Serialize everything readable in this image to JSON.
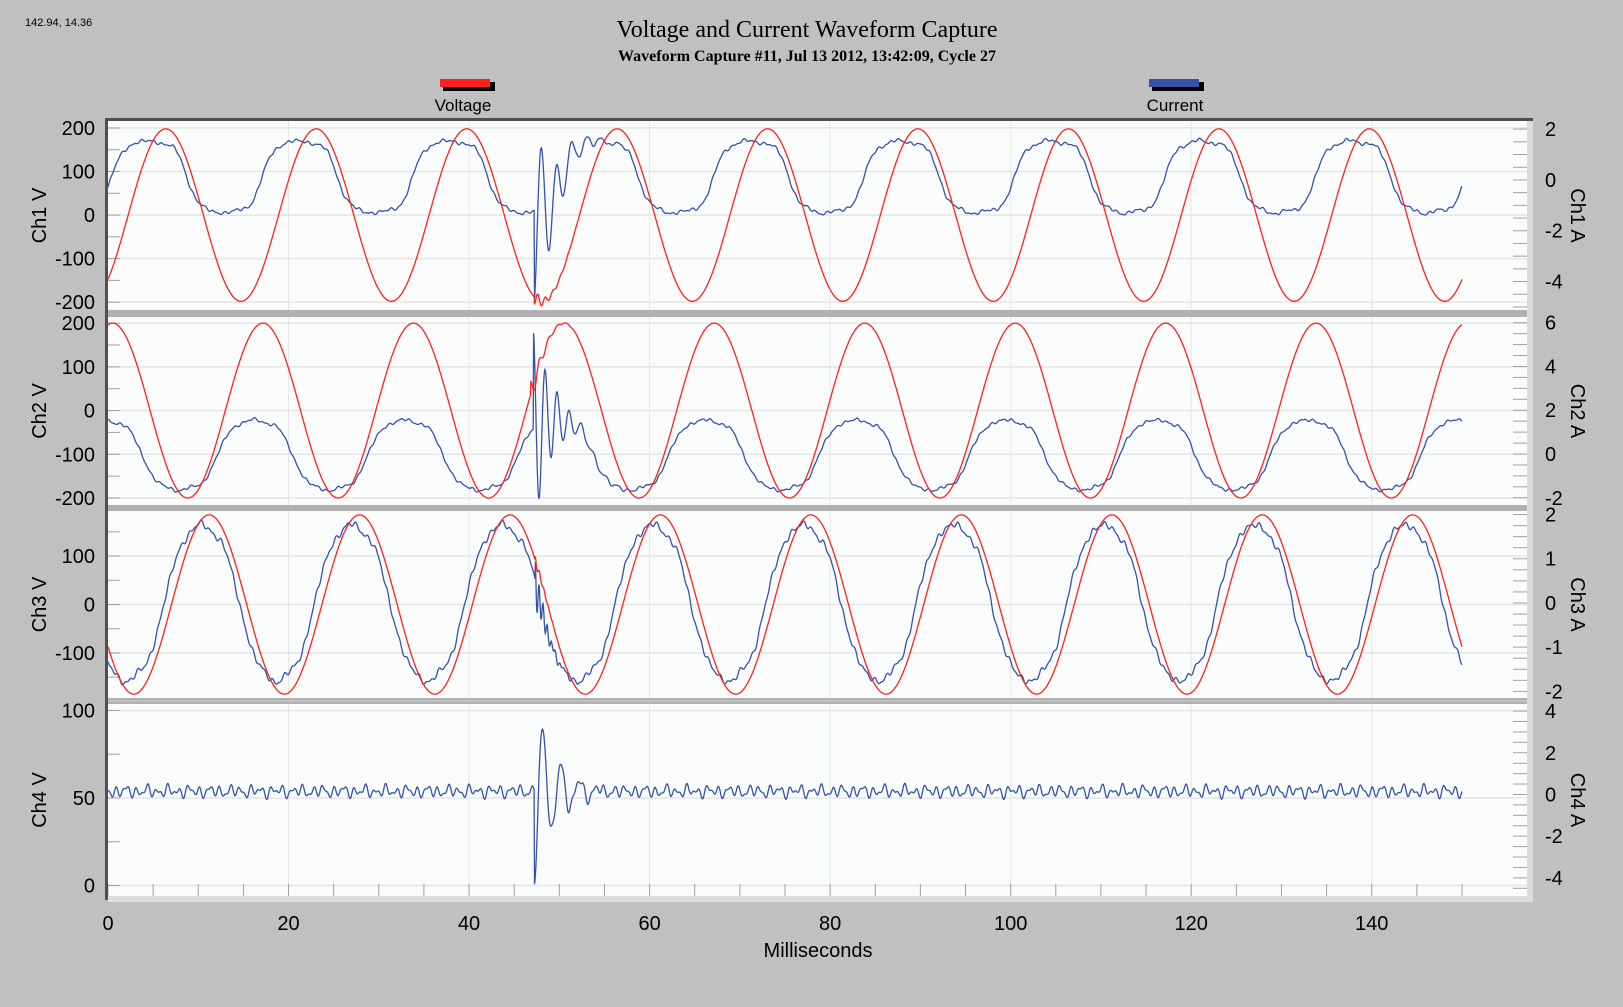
{
  "readout": "142.94, 14.36",
  "title": "Voltage and Current Waveform Capture",
  "subtitle": "Waveform Capture #11, Jul 13 2012, 13:42:09,  Cycle 27",
  "legend": [
    {
      "label": "Voltage",
      "color": "#ff2020"
    },
    {
      "label": "Current",
      "color": "#3552a8"
    }
  ],
  "chart_data": {
    "type": "line",
    "xlabel": "Milliseconds",
    "xlim": [
      0,
      150
    ],
    "xticks": [
      0,
      20,
      40,
      60,
      80,
      100,
      120,
      140
    ],
    "x_minor_step": 5,
    "grid": true,
    "legend_position": "top",
    "fundamental_hz": 60,
    "background": "#c0c0c0",
    "panels": [
      {
        "left_label": "Ch1 V",
        "right_label": "Ch1 A",
        "vlim": [
          -218,
          216
        ],
        "vticks": [
          200,
          100,
          0,
          -100,
          -200
        ],
        "alim": [
          -5.12,
          2.32
        ],
        "aticks": [
          2,
          0,
          -2,
          -4
        ],
        "series": [
          {
            "name": "Voltage",
            "unit": "V",
            "amplitude": 198,
            "peak_ms": 6.4,
            "offset": 0,
            "h3": 0,
            "h5": 0,
            "transient": {
              "start_ms": 47.2,
              "amplitude": -18,
              "freq_khz": 1.2,
              "decay_ms": 1.5
            }
          },
          {
            "name": "Current",
            "unit": "A",
            "amplitude": 1.6,
            "peak_ms": 4.6,
            "offset": 0.12,
            "h3": 0.25,
            "h5": 0.1,
            "transient": {
              "start_ms": 47.2,
              "amplitude": -3.6,
              "freq_khz": 0.6,
              "decay_ms": 2.2
            }
          }
        ]
      },
      {
        "left_label": "Ch2 V",
        "right_label": "Ch2 A",
        "vlim": [
          -216,
          214
        ],
        "vticks": [
          200,
          100,
          0,
          -100,
          -200
        ],
        "alim": [
          -2.33,
          6.26
        ],
        "aticks": [
          6,
          4,
          2,
          0,
          -2
        ],
        "series": [
          {
            "name": "Voltage",
            "unit": "V",
            "amplitude": 200,
            "peak_ms": 0.5,
            "offset": 0,
            "h3": 0,
            "h5": 0,
            "transient": {
              "start_ms": 46.8,
              "amplitude": 30,
              "freq_khz": 1.0,
              "decay_ms": 1.2
            }
          },
          {
            "name": "Current",
            "unit": "A",
            "amplitude": 1.75,
            "peak_ms": 16.3,
            "offset": -0.05,
            "h3": 0.2,
            "h5": 0.08,
            "transient": {
              "start_ms": 47.1,
              "amplitude": 4.6,
              "freq_khz": 0.75,
              "decay_ms": 2.0
            }
          }
        ]
      },
      {
        "left_label": "Ch3 V",
        "right_label": "Ch3 A",
        "vlim": [
          -193,
          193
        ],
        "vticks": [
          100,
          0,
          -100
        ],
        "alim": [
          -2.15,
          2.08
        ],
        "aticks": [
          2,
          1,
          0,
          -1,
          -2
        ],
        "series": [
          {
            "name": "Voltage",
            "unit": "V",
            "amplitude": 185,
            "peak_ms": 11.2,
            "offset": 0,
            "h3": 0,
            "h5": 0,
            "transient": {
              "start_ms": 47.3,
              "amplitude": 12,
              "freq_khz": 2.0,
              "decay_ms": 0.8
            }
          },
          {
            "name": "Current",
            "unit": "A",
            "amplitude": 1.85,
            "peak_ms": 10.4,
            "offset": 0,
            "h3": 0.12,
            "h5": 0.06,
            "transient": {
              "start_ms": 47.3,
              "amplitude": 0.6,
              "freq_khz": 2.2,
              "decay_ms": 1.0
            }
          }
        ]
      },
      {
        "left_label": "Ch4 V",
        "right_label": "Ch4 A",
        "vlim": [
          -6,
          103.7
        ],
        "vticks": [
          100,
          50,
          0
        ],
        "alim": [
          -4.87,
          4.34
        ],
        "aticks": [
          4,
          2,
          0,
          -2,
          -4
        ],
        "series": [
          {
            "name": "Current",
            "unit": "A",
            "amplitude": 0,
            "peak_ms": 0,
            "offset": 0.15,
            "h3": 0,
            "h5": 0,
            "ripple": 0.3,
            "transient": {
              "start_ms": 47.2,
              "amplitude": -4.6,
              "freq_khz": 0.5,
              "decay_ms": 2.2
            }
          }
        ]
      }
    ]
  }
}
